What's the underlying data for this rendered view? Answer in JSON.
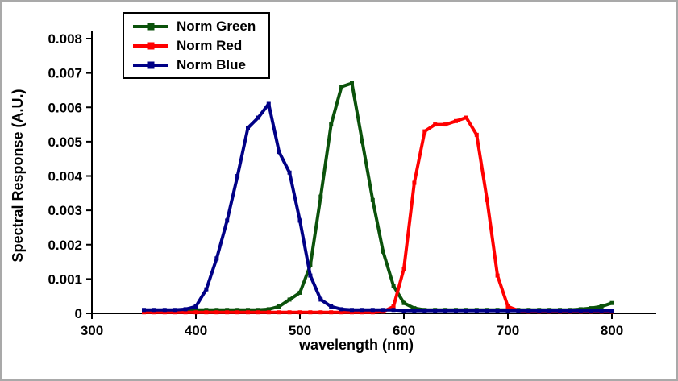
{
  "figure": {
    "background": "#ffffff",
    "border_color": "#a9a9a9"
  },
  "chart_data": {
    "type": "line",
    "title": "",
    "xlabel": "wavelength (nm)",
    "ylabel": "Spectral Response (A.U.)",
    "xlim": [
      300,
      800
    ],
    "ylim": [
      0,
      0.008
    ],
    "xticks": [
      300,
      400,
      500,
      600,
      700,
      800
    ],
    "yticks": [
      0,
      0.001,
      0.002,
      0.003,
      0.004,
      0.005,
      0.006,
      0.007,
      0.008
    ],
    "ytick_labels": [
      "0",
      "0.001",
      "0.002",
      "0.003",
      "0.004",
      "0.005",
      "0.006",
      "0.007",
      "0.008"
    ],
    "grid": false,
    "legend_position": "top-left-inside",
    "x": [
      350,
      360,
      370,
      380,
      390,
      400,
      410,
      420,
      430,
      440,
      450,
      460,
      470,
      480,
      490,
      500,
      510,
      520,
      530,
      540,
      550,
      560,
      570,
      580,
      590,
      600,
      610,
      620,
      630,
      640,
      650,
      660,
      670,
      680,
      690,
      700,
      710,
      720,
      730,
      740,
      750,
      760,
      770,
      780,
      790,
      800
    ],
    "series": [
      {
        "name": "Norm Green",
        "color": "#0b520b",
        "values": [
          5e-05,
          5e-05,
          5e-05,
          5e-05,
          8e-05,
          0.0001,
          0.0001,
          0.0001,
          0.0001,
          0.0001,
          0.0001,
          0.0001,
          0.00012,
          0.0002,
          0.0004,
          0.0006,
          0.0014,
          0.0034,
          0.0055,
          0.0066,
          0.0067,
          0.005,
          0.0033,
          0.0018,
          0.0008,
          0.0003,
          0.00015,
          0.0001,
          0.0001,
          0.0001,
          0.0001,
          0.0001,
          0.0001,
          0.0001,
          0.0001,
          0.0001,
          0.0001,
          0.0001,
          0.0001,
          0.0001,
          0.0001,
          0.0001,
          0.00012,
          0.00015,
          0.0002,
          0.0003
        ]
      },
      {
        "name": "Norm Red",
        "color": "#ff0000",
        "values": [
          3e-05,
          3e-05,
          3e-05,
          3e-05,
          3e-05,
          3e-05,
          3e-05,
          3e-05,
          3e-05,
          3e-05,
          3e-05,
          3e-05,
          3e-05,
          3e-05,
          3e-05,
          3e-05,
          3e-05,
          3e-05,
          3e-05,
          3e-05,
          3e-05,
          3e-05,
          3e-05,
          5e-05,
          0.0002,
          0.0013,
          0.0038,
          0.0053,
          0.0055,
          0.0055,
          0.0056,
          0.0057,
          0.0052,
          0.0033,
          0.0011,
          0.0002,
          8e-05,
          5e-05,
          5e-05,
          5e-05,
          5e-05,
          5e-05,
          5e-05,
          5e-05,
          5e-05,
          5e-05
        ]
      },
      {
        "name": "Norm Blue",
        "color": "#000086",
        "values": [
          0.0001,
          0.0001,
          0.0001,
          0.0001,
          0.00012,
          0.0002,
          0.0007,
          0.0016,
          0.0027,
          0.004,
          0.0054,
          0.0057,
          0.0061,
          0.0047,
          0.0041,
          0.0027,
          0.0011,
          0.0004,
          0.0002,
          0.00012,
          0.0001,
          0.0001,
          0.0001,
          0.0001,
          0.0001,
          8e-05,
          8e-05,
          8e-05,
          8e-05,
          8e-05,
          8e-05,
          8e-05,
          8e-05,
          8e-05,
          8e-05,
          8e-05,
          8e-05,
          8e-05,
          8e-05,
          8e-05,
          8e-05,
          8e-05,
          8e-05,
          8e-05,
          8e-05,
          8e-05
        ]
      }
    ]
  }
}
